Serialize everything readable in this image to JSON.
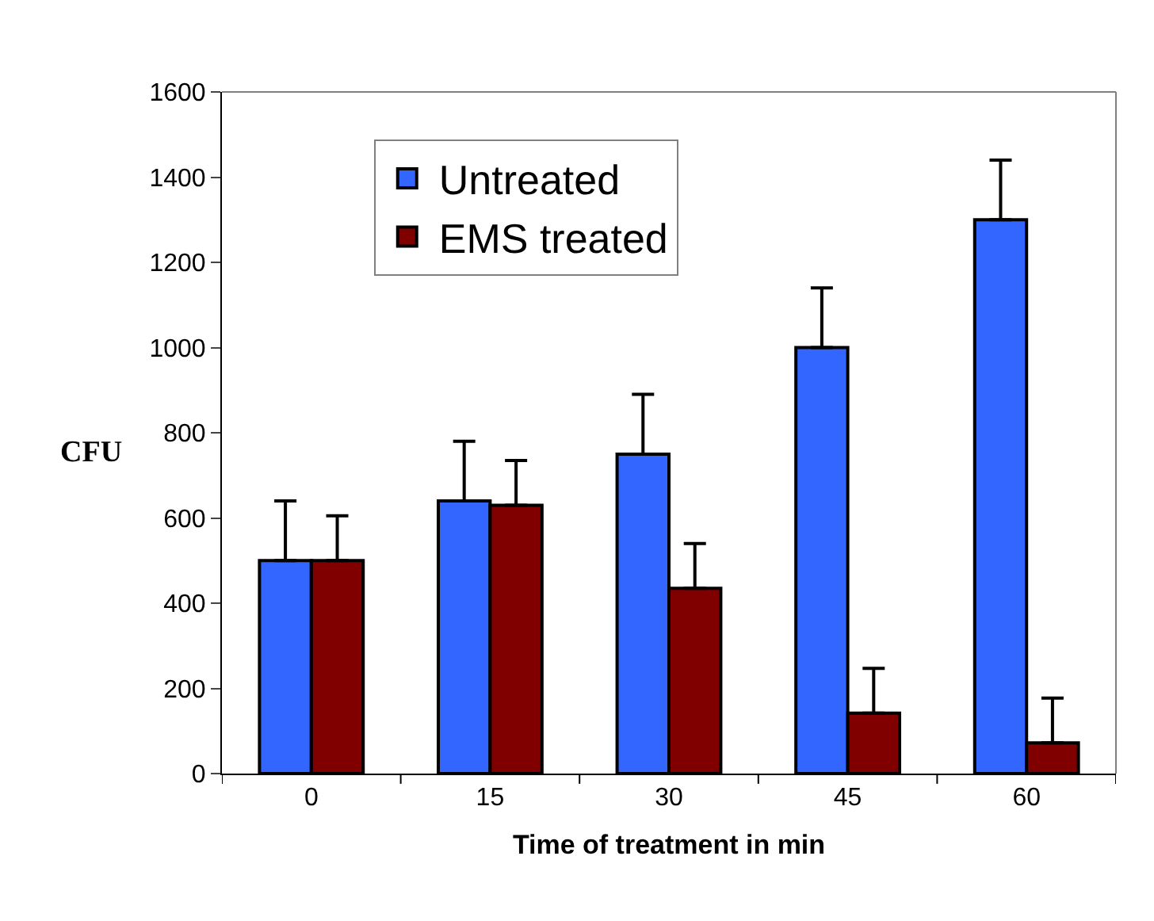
{
  "chart_data": {
    "type": "bar",
    "xlabel": "Time of treatment in min",
    "ylabel": "CFU",
    "categories": [
      "0",
      "15",
      "30",
      "45",
      "60"
    ],
    "series": [
      {
        "name": "Untreated",
        "color": "#3366ff",
        "values": [
          500,
          640,
          750,
          1000,
          1300
        ],
        "errors": [
          140,
          140,
          140,
          140,
          140
        ]
      },
      {
        "name": "EMS treated",
        "color": "#800000",
        "values": [
          500,
          630,
          435,
          142,
          72
        ],
        "errors": [
          105,
          105,
          105,
          105,
          105
        ]
      }
    ],
    "ylim": [
      0,
      1600
    ],
    "yticks": [
      0,
      200,
      400,
      600,
      800,
      1000,
      1200,
      1400,
      1600
    ],
    "legend": "top left"
  }
}
